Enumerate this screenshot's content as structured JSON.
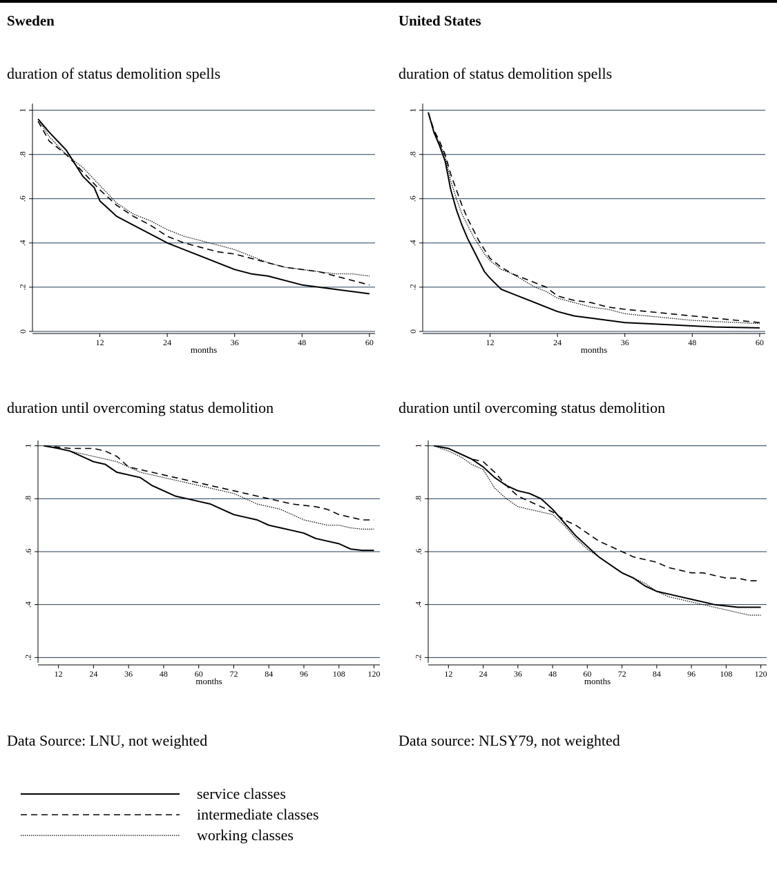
{
  "header": {
    "left_title": "Sweden",
    "right_title": "United States"
  },
  "sources": {
    "left": "Data Source: LNU, not weighted",
    "right": "Data source: NLSY79, not weighted"
  },
  "legend": {
    "items": [
      {
        "label": "service classes",
        "style": "solid"
      },
      {
        "label": "intermediate classes",
        "style": "dashed"
      },
      {
        "label": "working classes",
        "style": "dotted"
      }
    ]
  },
  "chart_data": [
    {
      "type": "line",
      "title": "duration of status demolition spells",
      "xlabel": "months",
      "xlim": [
        0,
        61
      ],
      "ylim": [
        0,
        1.03
      ],
      "xticks": [
        12,
        24,
        36,
        48,
        60
      ],
      "yticks": [
        0,
        0.2,
        0.4,
        0.6,
        0.8,
        1
      ],
      "ytick_labels": [
        "0",
        ".2",
        ".4",
        ".6",
        ".8",
        "1"
      ],
      "grid": true,
      "series": [
        {
          "name": "service classes",
          "style": "solid",
          "x": [
            1,
            3,
            6,
            9,
            11,
            12,
            15,
            18,
            21,
            24,
            27,
            30,
            33,
            36,
            39,
            42,
            45,
            48,
            51,
            54,
            57,
            60
          ],
          "y": [
            0.96,
            0.9,
            0.82,
            0.7,
            0.65,
            0.59,
            0.52,
            0.48,
            0.44,
            0.4,
            0.37,
            0.34,
            0.31,
            0.28,
            0.26,
            0.25,
            0.23,
            0.21,
            0.2,
            0.19,
            0.18,
            0.17
          ]
        },
        {
          "name": "intermediate classes",
          "style": "dashed",
          "x": [
            1,
            3,
            6,
            9,
            12,
            15,
            18,
            21,
            24,
            27,
            30,
            33,
            36,
            39,
            42,
            45,
            48,
            51,
            54,
            57,
            60
          ],
          "y": [
            0.95,
            0.86,
            0.8,
            0.72,
            0.64,
            0.57,
            0.52,
            0.48,
            0.43,
            0.4,
            0.38,
            0.36,
            0.35,
            0.33,
            0.31,
            0.29,
            0.28,
            0.27,
            0.25,
            0.23,
            0.21
          ]
        },
        {
          "name": "working classes",
          "style": "dotted",
          "x": [
            1,
            3,
            6,
            9,
            12,
            15,
            18,
            21,
            24,
            27,
            30,
            33,
            36,
            39,
            42,
            45,
            48,
            51,
            54,
            57,
            60
          ],
          "y": [
            0.96,
            0.88,
            0.8,
            0.74,
            0.66,
            0.58,
            0.53,
            0.5,
            0.46,
            0.43,
            0.41,
            0.39,
            0.37,
            0.34,
            0.31,
            0.29,
            0.28,
            0.27,
            0.26,
            0.26,
            0.25
          ]
        }
      ]
    },
    {
      "type": "line",
      "title": "duration of status demolition spells",
      "xlabel": "months",
      "xlim": [
        0,
        61
      ],
      "ylim": [
        0,
        1.03
      ],
      "xticks": [
        12,
        24,
        36,
        48,
        60
      ],
      "yticks": [
        0,
        0.2,
        0.4,
        0.6,
        0.8,
        1
      ],
      "ytick_labels": [
        "0",
        ".2",
        ".4",
        ".6",
        ".8",
        "1"
      ],
      "grid": true,
      "series": [
        {
          "name": "service classes",
          "style": "solid",
          "x": [
            1,
            2,
            3,
            4,
            5,
            6,
            7,
            8,
            9,
            10,
            11,
            12,
            14,
            16,
            18,
            20,
            22,
            24,
            27,
            30,
            33,
            36,
            40,
            44,
            48,
            52,
            56,
            60
          ],
          "y": [
            0.99,
            0.9,
            0.84,
            0.77,
            0.64,
            0.55,
            0.48,
            0.42,
            0.37,
            0.32,
            0.27,
            0.24,
            0.19,
            0.17,
            0.15,
            0.13,
            0.11,
            0.09,
            0.07,
            0.06,
            0.05,
            0.04,
            0.035,
            0.03,
            0.025,
            0.02,
            0.018,
            0.016
          ]
        },
        {
          "name": "intermediate classes",
          "style": "dashed",
          "x": [
            1,
            2,
            3,
            4,
            5,
            6,
            7,
            8,
            9,
            10,
            11,
            12,
            14,
            16,
            18,
            20,
            22,
            24,
            27,
            30,
            33,
            36,
            40,
            44,
            48,
            52,
            56,
            60
          ],
          "y": [
            0.99,
            0.91,
            0.86,
            0.8,
            0.71,
            0.64,
            0.57,
            0.51,
            0.46,
            0.41,
            0.37,
            0.33,
            0.29,
            0.26,
            0.24,
            0.22,
            0.2,
            0.16,
            0.14,
            0.13,
            0.11,
            0.1,
            0.09,
            0.08,
            0.07,
            0.06,
            0.05,
            0.04
          ]
        },
        {
          "name": "working classes",
          "style": "dotted",
          "x": [
            1,
            2,
            3,
            4,
            5,
            6,
            7,
            8,
            9,
            10,
            11,
            12,
            14,
            16,
            18,
            20,
            22,
            24,
            27,
            30,
            33,
            36,
            40,
            44,
            48,
            52,
            56,
            60
          ],
          "y": [
            0.99,
            0.9,
            0.85,
            0.79,
            0.68,
            0.6,
            0.53,
            0.48,
            0.43,
            0.39,
            0.35,
            0.32,
            0.28,
            0.26,
            0.23,
            0.2,
            0.18,
            0.15,
            0.13,
            0.11,
            0.1,
            0.08,
            0.07,
            0.06,
            0.05,
            0.045,
            0.04,
            0.035
          ]
        }
      ]
    },
    {
      "type": "line",
      "title": "duration until overcoming status demolition",
      "xlabel": "months",
      "xlim": [
        5,
        122
      ],
      "ylim": [
        0.18,
        1.02
      ],
      "xticks": [
        12,
        24,
        36,
        48,
        60,
        72,
        84,
        96,
        108,
        120
      ],
      "yticks": [
        0.2,
        0.4,
        0.6,
        0.8,
        1
      ],
      "ytick_labels": [
        ".2",
        ".4",
        ".6",
        ".8",
        "1"
      ],
      "grid": true,
      "series": [
        {
          "name": "service classes",
          "style": "solid",
          "x": [
            7,
            12,
            16,
            20,
            24,
            28,
            32,
            36,
            40,
            44,
            48,
            52,
            56,
            60,
            64,
            68,
            72,
            76,
            80,
            84,
            88,
            92,
            96,
            100,
            104,
            108,
            112,
            116,
            120
          ],
          "y": [
            1.0,
            0.99,
            0.98,
            0.96,
            0.94,
            0.93,
            0.9,
            0.89,
            0.88,
            0.85,
            0.83,
            0.81,
            0.8,
            0.79,
            0.78,
            0.76,
            0.74,
            0.73,
            0.72,
            0.7,
            0.69,
            0.68,
            0.67,
            0.65,
            0.64,
            0.63,
            0.61,
            0.605,
            0.605
          ]
        },
        {
          "name": "intermediate classes",
          "style": "dashed",
          "x": [
            7,
            12,
            16,
            20,
            24,
            28,
            32,
            36,
            40,
            44,
            48,
            52,
            56,
            60,
            64,
            68,
            72,
            76,
            80,
            84,
            88,
            92,
            96,
            100,
            104,
            108,
            112,
            116,
            120
          ],
          "y": [
            1.0,
            0.995,
            0.99,
            0.99,
            0.99,
            0.98,
            0.96,
            0.92,
            0.91,
            0.9,
            0.89,
            0.88,
            0.87,
            0.86,
            0.85,
            0.84,
            0.83,
            0.82,
            0.81,
            0.8,
            0.79,
            0.78,
            0.775,
            0.77,
            0.76,
            0.74,
            0.73,
            0.72,
            0.72
          ]
        },
        {
          "name": "working classes",
          "style": "dotted",
          "x": [
            7,
            12,
            16,
            20,
            24,
            28,
            32,
            36,
            40,
            44,
            48,
            52,
            56,
            60,
            64,
            68,
            72,
            76,
            80,
            84,
            88,
            92,
            96,
            100,
            104,
            108,
            112,
            116,
            120
          ],
          "y": [
            1.0,
            0.99,
            0.98,
            0.97,
            0.96,
            0.95,
            0.94,
            0.92,
            0.9,
            0.89,
            0.88,
            0.87,
            0.86,
            0.85,
            0.84,
            0.83,
            0.82,
            0.8,
            0.78,
            0.77,
            0.76,
            0.74,
            0.72,
            0.71,
            0.7,
            0.7,
            0.69,
            0.685,
            0.685
          ]
        }
      ]
    },
    {
      "type": "line",
      "title": "duration until overcoming status demolition",
      "xlabel": "months",
      "xlim": [
        5,
        122
      ],
      "ylim": [
        0.18,
        1.02
      ],
      "xticks": [
        12,
        24,
        36,
        48,
        60,
        72,
        84,
        96,
        108,
        120
      ],
      "yticks": [
        0.2,
        0.4,
        0.6,
        0.8,
        1
      ],
      "ytick_labels": [
        ".2",
        ".4",
        ".6",
        ".8",
        "1"
      ],
      "grid": true,
      "series": [
        {
          "name": "service classes",
          "style": "solid",
          "x": [
            7,
            12,
            16,
            20,
            24,
            28,
            32,
            36,
            40,
            44,
            48,
            52,
            56,
            60,
            64,
            68,
            72,
            76,
            80,
            84,
            88,
            92,
            96,
            100,
            104,
            108,
            112,
            116,
            120
          ],
          "y": [
            1.0,
            0.99,
            0.97,
            0.95,
            0.92,
            0.88,
            0.85,
            0.83,
            0.82,
            0.8,
            0.76,
            0.71,
            0.66,
            0.62,
            0.58,
            0.55,
            0.52,
            0.5,
            0.47,
            0.45,
            0.44,
            0.43,
            0.42,
            0.41,
            0.4,
            0.395,
            0.39,
            0.39,
            0.39
          ]
        },
        {
          "name": "intermediate classes",
          "style": "dashed",
          "x": [
            7,
            12,
            16,
            20,
            24,
            28,
            32,
            36,
            40,
            44,
            48,
            52,
            56,
            60,
            64,
            68,
            72,
            76,
            80,
            84,
            88,
            92,
            96,
            100,
            104,
            108,
            112,
            116,
            120
          ],
          "y": [
            1.0,
            0.99,
            0.97,
            0.95,
            0.94,
            0.9,
            0.85,
            0.81,
            0.79,
            0.77,
            0.75,
            0.72,
            0.7,
            0.67,
            0.64,
            0.62,
            0.6,
            0.58,
            0.57,
            0.56,
            0.54,
            0.53,
            0.52,
            0.52,
            0.51,
            0.5,
            0.5,
            0.49,
            0.49
          ]
        },
        {
          "name": "working classes",
          "style": "dotted",
          "x": [
            7,
            12,
            16,
            20,
            24,
            28,
            32,
            36,
            40,
            44,
            48,
            52,
            56,
            60,
            64,
            68,
            72,
            76,
            80,
            84,
            88,
            92,
            96,
            100,
            104,
            108,
            112,
            116,
            120
          ],
          "y": [
            1.0,
            0.98,
            0.96,
            0.93,
            0.91,
            0.84,
            0.8,
            0.77,
            0.76,
            0.75,
            0.74,
            0.7,
            0.65,
            0.61,
            0.58,
            0.55,
            0.52,
            0.5,
            0.48,
            0.45,
            0.43,
            0.42,
            0.41,
            0.4,
            0.39,
            0.38,
            0.37,
            0.36,
            0.36
          ]
        }
      ]
    }
  ]
}
